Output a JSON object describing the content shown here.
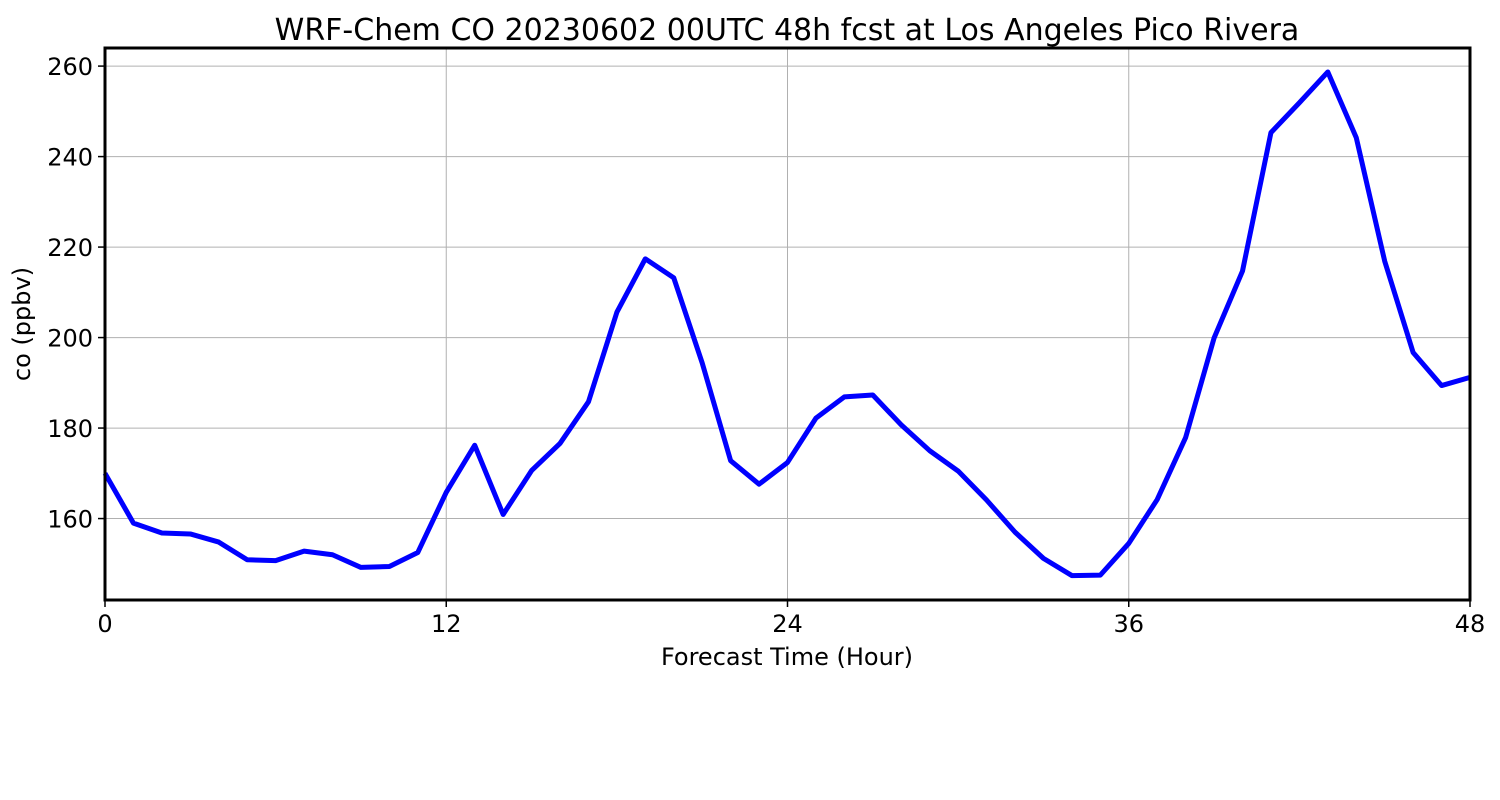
{
  "chart_data": {
    "type": "line",
    "title": "WRF-Chem CO  20230602 00UTC 48h fcst at Los Angeles Pico Rivera",
    "xlabel": "Forecast Time (Hour)",
    "ylabel": "co  (ppbv)",
    "xlim": [
      0,
      48
    ],
    "ylim": [
      142,
      264
    ],
    "xticks": [
      0,
      12,
      24,
      36,
      48
    ],
    "yticks": [
      160,
      180,
      200,
      220,
      240,
      260
    ],
    "grid": true,
    "line_color": "#0000ff",
    "series": [
      {
        "x": [
          0,
          1,
          2,
          3,
          4,
          5,
          6,
          7,
          8,
          9,
          10,
          11,
          12,
          13,
          14,
          15,
          16,
          17,
          18,
          19,
          20,
          21,
          22,
          23,
          24,
          25,
          26,
          27,
          28,
          29,
          30,
          31,
          32,
          33,
          34,
          35,
          36,
          37,
          38,
          39,
          40,
          41,
          42,
          43,
          44,
          45,
          46,
          47,
          48
        ],
        "values": [
          170.0,
          159.0,
          156.8,
          156.6,
          154.8,
          150.9,
          150.7,
          152.8,
          152.0,
          149.2,
          149.4,
          152.5,
          165.8,
          176.2,
          160.9,
          170.6,
          176.6,
          185.8,
          205.6,
          217.4,
          213.2,
          194.4,
          172.8,
          167.6,
          172.4,
          182.2,
          186.9,
          187.3,
          180.7,
          175.0,
          170.5,
          164.1,
          157.0,
          151.2,
          147.4,
          147.5,
          154.5,
          164.2,
          177.9,
          199.9,
          214.7,
          245.3,
          251.9,
          258.7,
          244.2,
          216.9,
          196.7,
          189.4,
          191.2
        ]
      }
    ]
  }
}
